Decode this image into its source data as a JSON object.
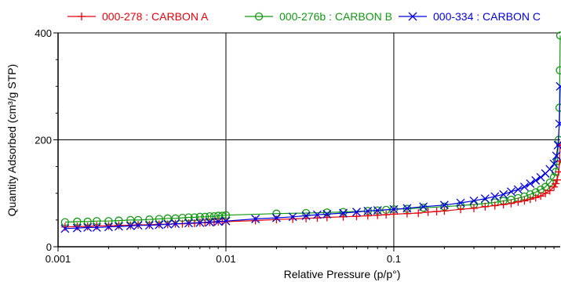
{
  "chart_data": {
    "type": "scatter",
    "title": "",
    "xlabel": "Relative Pressure (p/p°)",
    "ylabel": "Quantity Adsorbed (cm³/g STP)",
    "xscale": "log",
    "xlim": [
      0.001,
      0.98
    ],
    "ylim": [
      0,
      400
    ],
    "x_ticks": [
      0.001,
      0.01,
      0.1
    ],
    "x_tick_labels": [
      "0.001",
      "0.01",
      "0.1"
    ],
    "y_ticks": [
      0,
      200,
      400
    ],
    "y_tick_labels": [
      "0",
      "200",
      "400"
    ],
    "grid": true,
    "legend_position": "top",
    "series": [
      {
        "name": "000-278 : CARBON A",
        "color": "#e8000b",
        "marker": "plus",
        "x": [
          0.0011,
          0.0013,
          0.0015,
          0.0017,
          0.002,
          0.0023,
          0.0027,
          0.003,
          0.0035,
          0.004,
          0.0045,
          0.005,
          0.0055,
          0.006,
          0.0065,
          0.007,
          0.0075,
          0.008,
          0.0085,
          0.009,
          0.0095,
          0.01,
          0.015,
          0.02,
          0.025,
          0.03,
          0.035,
          0.04,
          0.05,
          0.06,
          0.07,
          0.08,
          0.09,
          0.1,
          0.12,
          0.14,
          0.16,
          0.18,
          0.2,
          0.25,
          0.3,
          0.35,
          0.4,
          0.45,
          0.5,
          0.55,
          0.6,
          0.65,
          0.7,
          0.75,
          0.8,
          0.85,
          0.9,
          0.92,
          0.94,
          0.96,
          0.97,
          0.98
        ],
        "y": [
          37,
          38,
          38,
          39,
          39,
          40,
          40,
          41,
          41,
          42,
          42,
          43,
          43,
          44,
          44,
          45,
          45,
          46,
          46,
          47,
          47,
          47,
          49,
          51,
          52,
          53,
          54,
          55,
          56,
          57,
          58,
          59,
          60,
          61,
          62,
          63,
          65,
          66,
          67,
          70,
          72,
          75,
          77,
          79,
          81,
          84,
          86,
          89,
          92,
          95,
          100,
          105,
          112,
          118,
          125,
          140,
          160,
          190
        ]
      },
      {
        "name": "000-276b : CARBON B",
        "color": "#119911",
        "marker": "circle",
        "x": [
          0.0011,
          0.0013,
          0.0015,
          0.0017,
          0.002,
          0.0023,
          0.0027,
          0.003,
          0.0035,
          0.004,
          0.0045,
          0.005,
          0.0055,
          0.006,
          0.0065,
          0.007,
          0.0075,
          0.008,
          0.0085,
          0.009,
          0.0095,
          0.01,
          0.02,
          0.03,
          0.04,
          0.05,
          0.07,
          0.08,
          0.09,
          0.1,
          0.12,
          0.15,
          0.2,
          0.25,
          0.3,
          0.35,
          0.4,
          0.45,
          0.5,
          0.55,
          0.6,
          0.65,
          0.7,
          0.75,
          0.8,
          0.85,
          0.9,
          0.92,
          0.94,
          0.96,
          0.97,
          0.975,
          0.98
        ],
        "y": [
          46,
          47,
          47,
          48,
          48,
          49,
          50,
          50,
          51,
          52,
          53,
          53,
          54,
          55,
          55,
          56,
          56,
          57,
          57,
          58,
          58,
          59,
          62,
          63,
          64,
          65,
          67,
          68,
          69,
          70,
          71,
          73,
          75,
          77,
          79,
          81,
          83,
          86,
          88,
          91,
          94,
          98,
          102,
          107,
          112,
          120,
          130,
          140,
          160,
          200,
          260,
          330,
          395
        ]
      },
      {
        "name": "000-334 : CARBON C",
        "color": "#0000e0",
        "marker": "x",
        "x": [
          0.0011,
          0.0013,
          0.0015,
          0.0017,
          0.002,
          0.0023,
          0.0027,
          0.003,
          0.0035,
          0.004,
          0.0045,
          0.005,
          0.006,
          0.007,
          0.008,
          0.009,
          0.01,
          0.015,
          0.02,
          0.025,
          0.03,
          0.035,
          0.04,
          0.05,
          0.06,
          0.07,
          0.08,
          0.1,
          0.12,
          0.15,
          0.2,
          0.25,
          0.3,
          0.35,
          0.4,
          0.45,
          0.5,
          0.55,
          0.6,
          0.65,
          0.7,
          0.75,
          0.8,
          0.85,
          0.9,
          0.93,
          0.95,
          0.97,
          0.98
        ],
        "y": [
          34,
          35,
          36,
          36,
          37,
          38,
          39,
          40,
          40,
          41,
          42,
          43,
          44,
          45,
          46,
          47,
          48,
          52,
          54,
          56,
          58,
          60,
          61,
          63,
          65,
          67,
          68,
          70,
          72,
          75,
          78,
          82,
          86,
          90,
          94,
          98,
          103,
          107,
          112,
          118,
          124,
          130,
          137,
          145,
          155,
          170,
          190,
          230,
          300
        ]
      }
    ]
  }
}
